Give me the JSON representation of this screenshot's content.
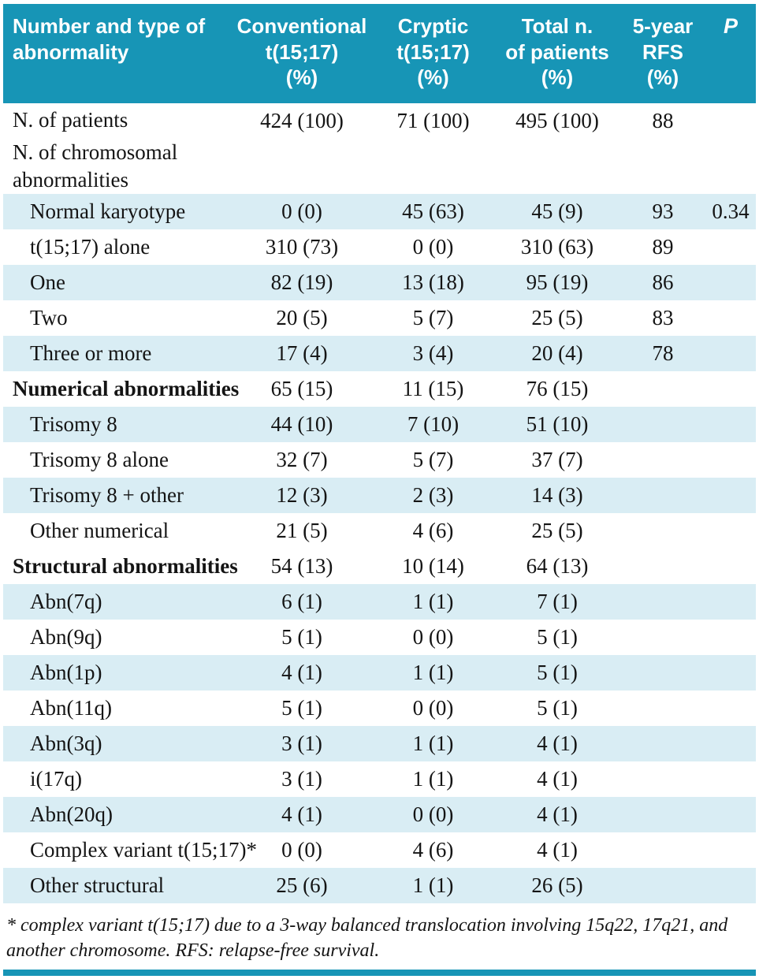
{
  "accent_color": "#1795b6",
  "row_shade_color": "#d9edf4",
  "table": {
    "header": [
      "Number and type of\nabnormality",
      "Conventional\nt(15;17)\n(%)",
      "Cryptic\nt(15;17)\n(%)",
      "Total n.\nof patients\n(%)",
      "5-year\nRFS\n(%)",
      "P"
    ],
    "rows": [
      {
        "label": "N. of patients",
        "indent": false,
        "bold": false,
        "shaded": false,
        "values": [
          "424 (100)",
          "71 (100)",
          "495 (100)",
          "88",
          ""
        ]
      },
      {
        "label": "N. of chromosomal\nabnormalities",
        "indent": false,
        "bold": false,
        "shaded": false,
        "values": [
          "",
          "",
          "",
          "",
          ""
        ]
      },
      {
        "label": "Normal karyotype",
        "indent": true,
        "bold": false,
        "shaded": true,
        "values": [
          "0 (0)",
          "45 (63)",
          "45 (9)",
          "93",
          "0.34"
        ]
      },
      {
        "label": "t(15;17) alone",
        "indent": true,
        "bold": false,
        "shaded": false,
        "values": [
          "310 (73)",
          "0 (0)",
          "310 (63)",
          "89",
          ""
        ]
      },
      {
        "label": "One",
        "indent": true,
        "bold": false,
        "shaded": true,
        "values": [
          "82 (19)",
          "13 (18)",
          "95 (19)",
          "86",
          ""
        ]
      },
      {
        "label": "Two",
        "indent": true,
        "bold": false,
        "shaded": false,
        "values": [
          "20 (5)",
          "5 (7)",
          "25 (5)",
          "83",
          ""
        ]
      },
      {
        "label": "Three or more",
        "indent": true,
        "bold": false,
        "shaded": true,
        "values": [
          "17 (4)",
          "3 (4)",
          "20 (4)",
          "78",
          ""
        ]
      },
      {
        "label": "Numerical abnormalities",
        "indent": false,
        "bold": true,
        "shaded": false,
        "values": [
          "65 (15)",
          "11 (15)",
          "76 (15)",
          "",
          ""
        ]
      },
      {
        "label": "Trisomy 8",
        "indent": true,
        "bold": false,
        "shaded": true,
        "values": [
          "44 (10)",
          "7 (10)",
          "51 (10)",
          "",
          ""
        ]
      },
      {
        "label": "Trisomy 8 alone",
        "indent": true,
        "bold": false,
        "shaded": false,
        "values": [
          "32 (7)",
          "5 (7)",
          "37 (7)",
          "",
          ""
        ]
      },
      {
        "label": "Trisomy 8 + other",
        "indent": true,
        "bold": false,
        "shaded": true,
        "values": [
          "12 (3)",
          "2 (3)",
          "14 (3)",
          "",
          ""
        ]
      },
      {
        "label": "Other numerical",
        "indent": true,
        "bold": false,
        "shaded": false,
        "values": [
          "21 (5)",
          "4 (6)",
          "25 (5)",
          "",
          ""
        ]
      },
      {
        "label": "Structural abnormalities",
        "indent": false,
        "bold": true,
        "shaded": false,
        "values": [
          "54 (13)",
          "10 (14)",
          "64 (13)",
          "",
          ""
        ]
      },
      {
        "label": "Abn(7q)",
        "indent": true,
        "bold": false,
        "shaded": true,
        "values": [
          "6 (1)",
          "1 (1)",
          "7 (1)",
          "",
          ""
        ]
      },
      {
        "label": "Abn(9q)",
        "indent": true,
        "bold": false,
        "shaded": false,
        "values": [
          "5 (1)",
          "0 (0)",
          "5 (1)",
          "",
          ""
        ]
      },
      {
        "label": "Abn(1p)",
        "indent": true,
        "bold": false,
        "shaded": true,
        "values": [
          "4 (1)",
          "1 (1)",
          "5 (1)",
          "",
          ""
        ]
      },
      {
        "label": "Abn(11q)",
        "indent": true,
        "bold": false,
        "shaded": false,
        "values": [
          "5 (1)",
          "0 (0)",
          "5 (1)",
          "",
          ""
        ]
      },
      {
        "label": "Abn(3q)",
        "indent": true,
        "bold": false,
        "shaded": true,
        "values": [
          "3 (1)",
          "1 (1)",
          "4 (1)",
          "",
          ""
        ]
      },
      {
        "label": "i(17q)",
        "indent": true,
        "bold": false,
        "shaded": false,
        "values": [
          "3 (1)",
          "1 (1)",
          "4 (1)",
          "",
          ""
        ]
      },
      {
        "label": "Abn(20q)",
        "indent": true,
        "bold": false,
        "shaded": true,
        "values": [
          "4 (1)",
          "0 (0)",
          "4 (1)",
          "",
          ""
        ]
      },
      {
        "label": "Complex variant t(15;17)*",
        "indent": true,
        "bold": false,
        "shaded": false,
        "values": [
          "0 (0)",
          "4 (6)",
          "4 (1)",
          "",
          ""
        ]
      },
      {
        "label": "Other structural",
        "indent": true,
        "bold": false,
        "shaded": true,
        "values": [
          "25 (6)",
          "1 (1)",
          "26 (5)",
          "",
          ""
        ]
      }
    ]
  },
  "footnote": "* complex variant t(15;17) due to a 3-way balanced translocation involving 15q22, 17q21, and another chromosome. RFS: relapse-free survival."
}
